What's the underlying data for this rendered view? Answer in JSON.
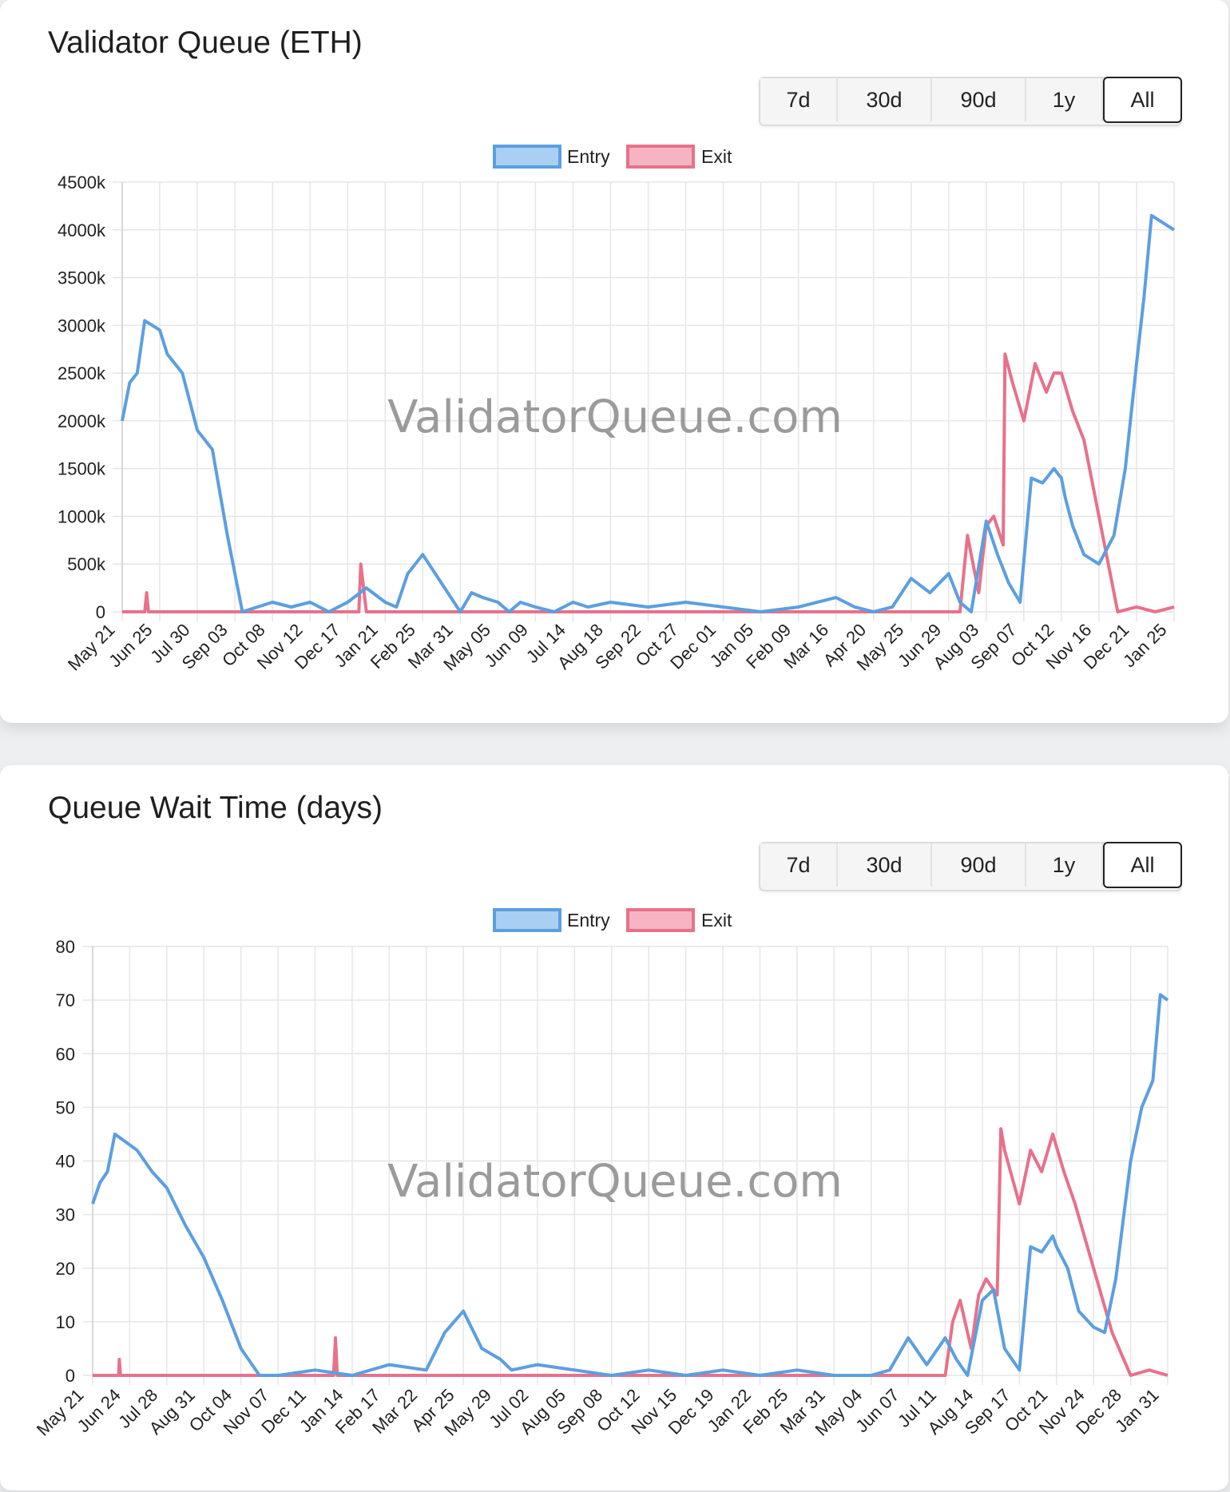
{
  "cards": [
    {
      "title": "Validator Queue (ETH)",
      "range_buttons": [
        "7d",
        "30d",
        "90d",
        "1y",
        "All"
      ],
      "active_range": "All"
    },
    {
      "title": "Queue Wait Time (days)",
      "range_buttons": [
        "7d",
        "30d",
        "90d",
        "1y",
        "All"
      ],
      "active_range": "All"
    }
  ],
  "watermark": "ValidatorQueue.com",
  "colors": {
    "entry_line": "#5b9fe0",
    "entry_fill": "#a9cff2",
    "exit_line": "#e8718a",
    "exit_fill": "#f6b4c3",
    "grid": "#e6e6e6",
    "watermark": "#8a8a8a"
  },
  "chart_data": [
    {
      "type": "line",
      "title": "Validator Queue (ETH)",
      "xlabel": "",
      "ylabel": "",
      "ylim": [
        0,
        4500
      ],
      "yticks": [
        0,
        500,
        1000,
        1500,
        2000,
        2500,
        3000,
        3500,
        4000,
        4500
      ],
      "ytick_labels": [
        "0",
        "500k",
        "1000k",
        "1500k",
        "2000k",
        "2500k",
        "3000k",
        "3500k",
        "4000k",
        "4500k"
      ],
      "xlim": [
        0,
        28
      ],
      "categories": [
        "May 21",
        "Jun 25",
        "Jul 30",
        "Sep 03",
        "Oct 08",
        "Nov 12",
        "Dec 17",
        "Jan 21",
        "Feb 25",
        "Mar 31",
        "May 05",
        "Jun 09",
        "Jul 14",
        "Aug 18",
        "Sep 22",
        "Oct 27",
        "Dec 01",
        "Jan 05",
        "Feb 09",
        "Mar 16",
        "Apr 20",
        "May 25",
        "Jun 29",
        "Aug 03",
        "Sep 07",
        "Oct 12",
        "Nov 16",
        "Dec 21",
        "Jan 25"
      ],
      "legend": [
        "Entry",
        "Exit"
      ],
      "legend_position": "top",
      "grid": true,
      "series": [
        {
          "name": "Entry",
          "x": [
            0,
            0.2,
            0.4,
            0.6,
            0.8,
            1.0,
            1.2,
            1.6,
            2.0,
            2.4,
            2.8,
            3.2,
            3.6,
            4.0,
            4.5,
            5,
            5.5,
            6,
            6.5,
            7,
            7.3,
            7.6,
            8,
            8.5,
            9,
            9.3,
            9.6,
            10,
            10.3,
            10.6,
            11,
            11.5,
            12,
            12.4,
            13,
            14,
            15,
            16,
            17,
            18,
            19,
            19.5,
            20,
            20.5,
            21,
            21.5,
            22,
            22.3,
            22.6,
            23,
            23.3,
            23.6,
            23.9,
            24.2,
            24.5,
            24.8,
            25.0,
            25.1,
            25.3,
            25.6,
            26.0,
            26.4,
            26.7,
            27,
            27.2,
            27.4,
            27.6,
            27.8,
            28
          ],
          "y": [
            2000,
            2400,
            2500,
            3050,
            3000,
            2950,
            2700,
            2500,
            1900,
            1700,
            800,
            0,
            50,
            100,
            50,
            100,
            0,
            100,
            250,
            100,
            50,
            400,
            600,
            300,
            0,
            200,
            150,
            100,
            0,
            100,
            50,
            0,
            100,
            50,
            100,
            50,
            100,
            50,
            0,
            50,
            150,
            50,
            0,
            50,
            350,
            200,
            400,
            100,
            0,
            950,
            600,
            300,
            100,
            1400,
            1350,
            1500,
            1400,
            1200,
            900,
            600,
            500,
            800,
            1500,
            2600,
            3300,
            4150,
            4100,
            4050,
            4000
          ]
        },
        {
          "name": "Exit",
          "x": [
            0,
            0.6,
            0.65,
            0.7,
            1,
            6,
            6.3,
            6.35,
            6.5,
            7,
            15,
            22,
            22.3,
            22.5,
            22.8,
            23.0,
            23.2,
            23.45,
            23.5,
            23.7,
            24.0,
            24.3,
            24.6,
            24.8,
            25.0,
            25.3,
            25.6,
            26,
            26.5,
            27,
            27.5,
            28
          ],
          "y": [
            0,
            0,
            200,
            0,
            0,
            0,
            0,
            500,
            0,
            0,
            0,
            0,
            0,
            800,
            200,
            900,
            1000,
            700,
            2700,
            2400,
            2000,
            2600,
            2300,
            2500,
            2500,
            2100,
            1800,
            1000,
            0,
            50,
            0,
            50
          ]
        }
      ]
    },
    {
      "type": "line",
      "title": "Queue Wait Time (days)",
      "xlabel": "",
      "ylabel": "",
      "ylim": [
        0,
        80
      ],
      "yticks": [
        0,
        10,
        20,
        30,
        40,
        50,
        60,
        70,
        80
      ],
      "ytick_labels": [
        "0",
        "10",
        "20",
        "30",
        "40",
        "50",
        "60",
        "70",
        "80"
      ],
      "xlim": [
        0,
        29
      ],
      "categories": [
        "May 21",
        "Jun 24",
        "Jul 28",
        "Aug 31",
        "Oct 04",
        "Nov 07",
        "Dec 11",
        "Jan 14",
        "Feb 17",
        "Mar 22",
        "Apr 25",
        "May 29",
        "Jul 02",
        "Aug 05",
        "Sep 08",
        "Oct 12",
        "Nov 15",
        "Dec 19",
        "Jan 22",
        "Feb 25",
        "Mar 31",
        "May 04",
        "Jun 07",
        "Jul 11",
        "Aug 14",
        "Sep 17",
        "Oct 21",
        "Nov 24",
        "Dec 28",
        "Jan 31"
      ],
      "legend": [
        "Entry",
        "Exit"
      ],
      "legend_position": "top",
      "grid": true,
      "series": [
        {
          "name": "Entry",
          "x": [
            0,
            0.2,
            0.4,
            0.6,
            0.8,
            1.2,
            1.6,
            2.0,
            2.5,
            3.0,
            3.5,
            4.0,
            4.5,
            5,
            6,
            7,
            8,
            9,
            9.5,
            10,
            10.5,
            11,
            11.3,
            12,
            13,
            14,
            15,
            16,
            17,
            18,
            19,
            20,
            21,
            21.5,
            22,
            22.5,
            23,
            23.3,
            23.6,
            24,
            24.3,
            24.6,
            25,
            25.3,
            25.6,
            25.9,
            26.0,
            26.3,
            26.6,
            27.0,
            27.3,
            27.6,
            28.0,
            28.3,
            28.6,
            28.8,
            29
          ],
          "y": [
            32,
            36,
            38,
            45,
            44,
            42,
            38,
            35,
            28,
            22,
            14,
            5,
            0,
            0,
            1,
            0,
            2,
            1,
            8,
            12,
            5,
            3,
            1,
            2,
            1,
            0,
            1,
            0,
            1,
            0,
            1,
            0,
            0,
            1,
            7,
            2,
            7,
            3,
            0,
            14,
            16,
            5,
            1,
            24,
            23,
            26,
            24,
            20,
            12,
            9,
            8,
            18,
            40,
            50,
            55,
            71,
            70
          ]
        },
        {
          "name": "Exit",
          "x": [
            0,
            0.7,
            0.72,
            0.75,
            1,
            6.5,
            6.55,
            6.6,
            6.8,
            7,
            22,
            23,
            23.2,
            23.4,
            23.7,
            23.9,
            24.1,
            24.4,
            24.5,
            24.6,
            25.0,
            25.3,
            25.6,
            25.9,
            26.2,
            26.5,
            27,
            27.5,
            28.0,
            28.5,
            29
          ],
          "y": [
            0,
            0,
            3,
            0,
            0,
            0,
            7,
            0,
            0,
            0,
            0,
            0,
            10,
            14,
            5,
            15,
            18,
            15,
            46,
            42,
            32,
            42,
            38,
            45,
            38,
            32,
            20,
            8,
            0,
            1,
            0
          ]
        }
      ]
    }
  ]
}
